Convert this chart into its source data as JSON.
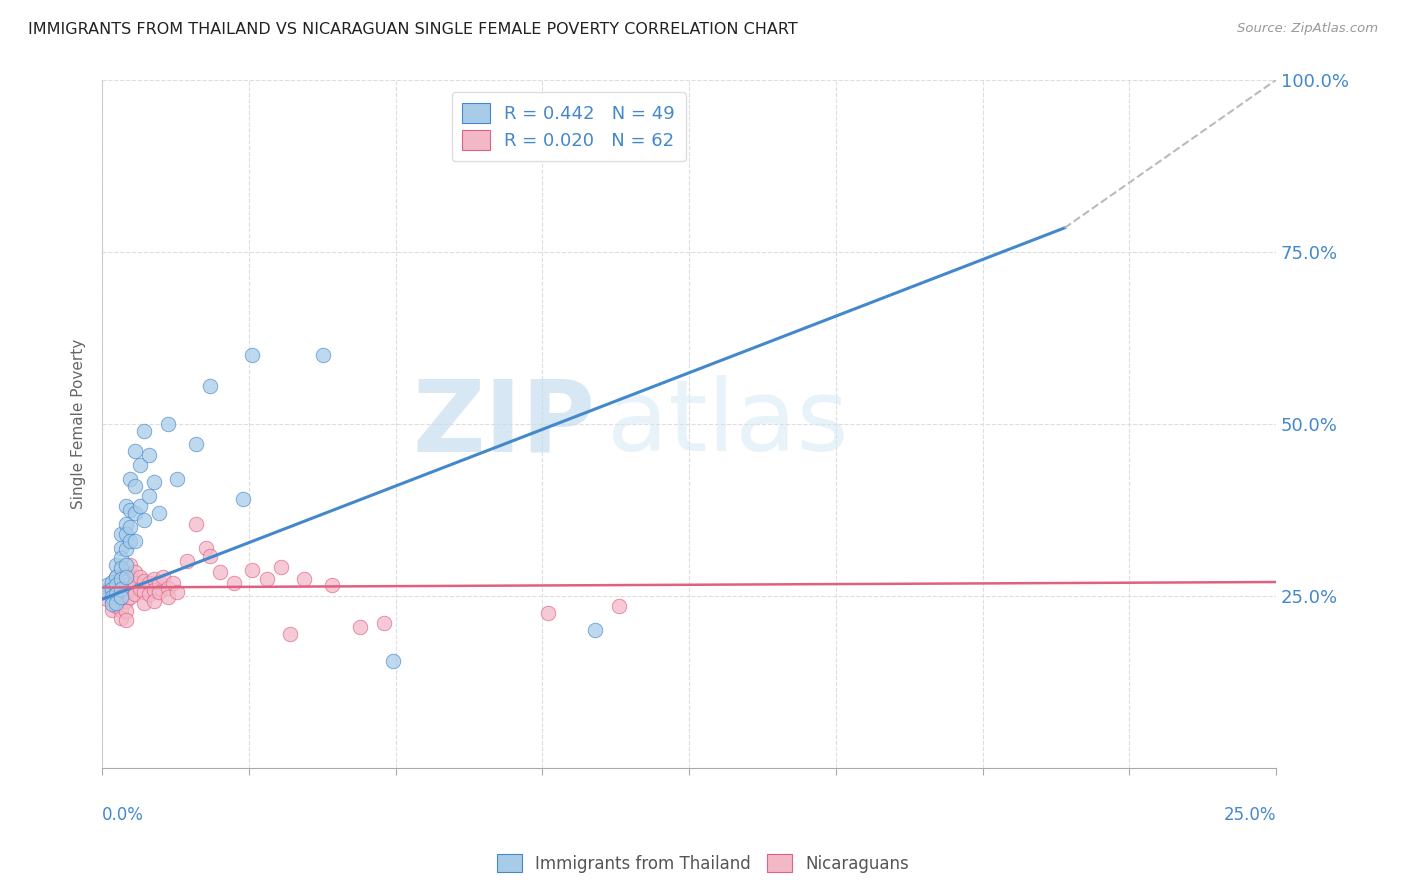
{
  "title": "IMMIGRANTS FROM THAILAND VS NICARAGUAN SINGLE FEMALE POVERTY CORRELATION CHART",
  "source": "Source: ZipAtlas.com",
  "ylabel": "Single Female Poverty",
  "xlim": [
    0.0,
    0.25
  ],
  "ylim": [
    0.0,
    1.0
  ],
  "right_yticks": [
    0.25,
    0.5,
    0.75,
    1.0
  ],
  "right_yticklabels": [
    "25.0%",
    "50.0%",
    "75.0%",
    "100.0%"
  ],
  "watermark_zip": "ZIP",
  "watermark_atlas": "atlas",
  "legend_entry1": "R = 0.442   N = 49",
  "legend_entry2": "R = 0.020   N = 62",
  "blue_color": "#a8cce8",
  "pink_color": "#f2b8c8",
  "blue_line_color": "#4488cc",
  "pink_line_color": "#e06080",
  "blue_scatter": [
    [
      0.001,
      0.265
    ],
    [
      0.001,
      0.255
    ],
    [
      0.002,
      0.27
    ],
    [
      0.002,
      0.26
    ],
    [
      0.002,
      0.248
    ],
    [
      0.002,
      0.238
    ],
    [
      0.003,
      0.295
    ],
    [
      0.003,
      0.278
    ],
    [
      0.003,
      0.265
    ],
    [
      0.003,
      0.252
    ],
    [
      0.003,
      0.24
    ],
    [
      0.004,
      0.34
    ],
    [
      0.004,
      0.32
    ],
    [
      0.004,
      0.305
    ],
    [
      0.004,
      0.29
    ],
    [
      0.004,
      0.275
    ],
    [
      0.004,
      0.26
    ],
    [
      0.004,
      0.248
    ],
    [
      0.005,
      0.38
    ],
    [
      0.005,
      0.355
    ],
    [
      0.005,
      0.34
    ],
    [
      0.005,
      0.318
    ],
    [
      0.005,
      0.295
    ],
    [
      0.005,
      0.278
    ],
    [
      0.006,
      0.42
    ],
    [
      0.006,
      0.375
    ],
    [
      0.006,
      0.35
    ],
    [
      0.006,
      0.33
    ],
    [
      0.007,
      0.46
    ],
    [
      0.007,
      0.41
    ],
    [
      0.007,
      0.37
    ],
    [
      0.007,
      0.33
    ],
    [
      0.008,
      0.44
    ],
    [
      0.008,
      0.38
    ],
    [
      0.009,
      0.49
    ],
    [
      0.009,
      0.36
    ],
    [
      0.01,
      0.455
    ],
    [
      0.01,
      0.395
    ],
    [
      0.011,
      0.415
    ],
    [
      0.012,
      0.37
    ],
    [
      0.014,
      0.5
    ],
    [
      0.016,
      0.42
    ],
    [
      0.02,
      0.47
    ],
    [
      0.023,
      0.555
    ],
    [
      0.03,
      0.39
    ],
    [
      0.032,
      0.6
    ],
    [
      0.047,
      0.6
    ],
    [
      0.062,
      0.155
    ],
    [
      0.105,
      0.2
    ]
  ],
  "pink_scatter": [
    [
      0.001,
      0.258
    ],
    [
      0.001,
      0.245
    ],
    [
      0.002,
      0.268
    ],
    [
      0.002,
      0.255
    ],
    [
      0.002,
      0.242
    ],
    [
      0.002,
      0.23
    ],
    [
      0.003,
      0.278
    ],
    [
      0.003,
      0.262
    ],
    [
      0.003,
      0.248
    ],
    [
      0.003,
      0.235
    ],
    [
      0.004,
      0.29
    ],
    [
      0.004,
      0.272
    ],
    [
      0.004,
      0.258
    ],
    [
      0.004,
      0.244
    ],
    [
      0.004,
      0.23
    ],
    [
      0.004,
      0.218
    ],
    [
      0.005,
      0.282
    ],
    [
      0.005,
      0.268
    ],
    [
      0.005,
      0.255
    ],
    [
      0.005,
      0.242
    ],
    [
      0.005,
      0.228
    ],
    [
      0.005,
      0.215
    ],
    [
      0.006,
      0.295
    ],
    [
      0.006,
      0.278
    ],
    [
      0.006,
      0.262
    ],
    [
      0.006,
      0.248
    ],
    [
      0.007,
      0.285
    ],
    [
      0.007,
      0.268
    ],
    [
      0.007,
      0.252
    ],
    [
      0.008,
      0.278
    ],
    [
      0.008,
      0.26
    ],
    [
      0.009,
      0.272
    ],
    [
      0.009,
      0.255
    ],
    [
      0.009,
      0.24
    ],
    [
      0.01,
      0.268
    ],
    [
      0.01,
      0.252
    ],
    [
      0.011,
      0.275
    ],
    [
      0.011,
      0.258
    ],
    [
      0.011,
      0.242
    ],
    [
      0.012,
      0.27
    ],
    [
      0.012,
      0.255
    ],
    [
      0.013,
      0.278
    ],
    [
      0.014,
      0.262
    ],
    [
      0.014,
      0.248
    ],
    [
      0.015,
      0.268
    ],
    [
      0.016,
      0.255
    ],
    [
      0.018,
      0.3
    ],
    [
      0.02,
      0.355
    ],
    [
      0.022,
      0.32
    ],
    [
      0.023,
      0.308
    ],
    [
      0.025,
      0.285
    ],
    [
      0.028,
      0.268
    ],
    [
      0.032,
      0.288
    ],
    [
      0.035,
      0.275
    ],
    [
      0.038,
      0.292
    ],
    [
      0.04,
      0.195
    ],
    [
      0.043,
      0.275
    ],
    [
      0.049,
      0.265
    ],
    [
      0.055,
      0.205
    ],
    [
      0.06,
      0.21
    ],
    [
      0.095,
      0.225
    ],
    [
      0.11,
      0.235
    ]
  ],
  "blue_line_x0": 0.0,
  "blue_line_x1": 0.205,
  "blue_line_y0": 0.245,
  "blue_line_y1": 0.785,
  "dashed_line_x0": 0.205,
  "dashed_line_x1": 0.25,
  "dashed_line_y0": 0.785,
  "dashed_line_y1": 1.0,
  "pink_line_x0": 0.0,
  "pink_line_x1": 0.25,
  "pink_line_y0": 0.262,
  "pink_line_y1": 0.27
}
